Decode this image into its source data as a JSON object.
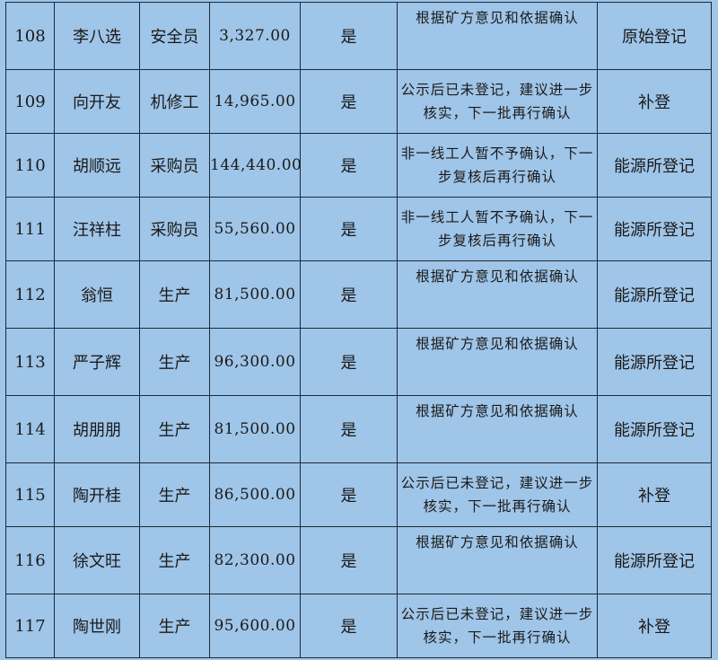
{
  "rows": [
    {
      "no": "108",
      "name": "李八选",
      "role": "安全员",
      "amount": "3,327.00",
      "flag": "是",
      "note": "根据矿方意见和依据确认",
      "category": "原始登记"
    },
    {
      "no": "109",
      "name": "向开友",
      "role": "机修工",
      "amount": "14,965.00",
      "flag": "是",
      "note": "公示后已未登记，建议进一步核实，下一批再行确认",
      "category": "补登"
    },
    {
      "no": "110",
      "name": "胡顺远",
      "role": "采购员",
      "amount": "144,440.00",
      "flag": "是",
      "note": "非一线工人暂不予确认，下一步复核后再行确认",
      "category": "能源所登记"
    },
    {
      "no": "111",
      "name": "汪祥柱",
      "role": "采购员",
      "amount": "55,560.00",
      "flag": "是",
      "note": "非一线工人暂不予确认，下一步复核后再行确认",
      "category": "能源所登记"
    },
    {
      "no": "112",
      "name": "翁恒",
      "role": "生产",
      "amount": "81,500.00",
      "flag": "是",
      "note": "根据矿方意见和依据确认",
      "category": "能源所登记"
    },
    {
      "no": "113",
      "name": "严子辉",
      "role": "生产",
      "amount": "96,300.00",
      "flag": "是",
      "note": "根据矿方意见和依据确认",
      "category": "能源所登记"
    },
    {
      "no": "114",
      "name": "胡朋朋",
      "role": "生产",
      "amount": "81,500.00",
      "flag": "是",
      "note": "根据矿方意见和依据确认",
      "category": "能源所登记"
    },
    {
      "no": "115",
      "name": "陶开桂",
      "role": "生产",
      "amount": "86,500.00",
      "flag": "是",
      "note": "公示后已未登记，建议进一步核实，下一批再行确认",
      "category": "补登"
    },
    {
      "no": "116",
      "name": "徐文旺",
      "role": "生产",
      "amount": "82,300.00",
      "flag": "是",
      "note": "根据矿方意见和依据确认",
      "category": "能源所登记"
    },
    {
      "no": "117",
      "name": "陶世刚",
      "role": "生产",
      "amount": "95,600.00",
      "flag": "是",
      "note": "公示后已未登记，建议进一步核实，下一批再行确认",
      "category": "补登"
    }
  ]
}
